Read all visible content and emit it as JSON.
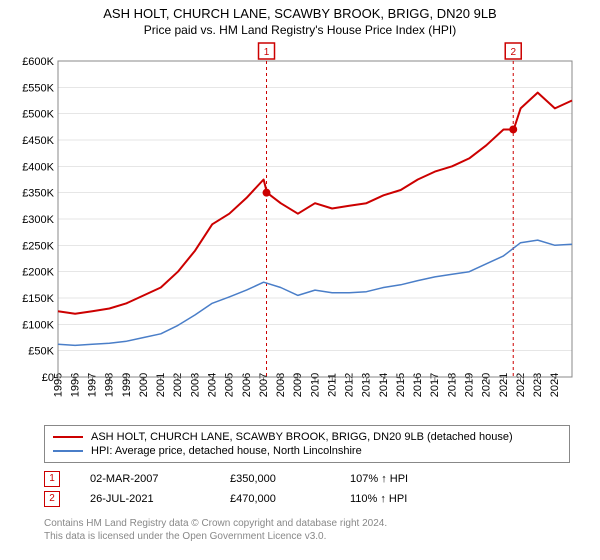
{
  "title": "ASH HOLT, CHURCH LANE, SCAWBY BROOK, BRIGG, DN20 9LB",
  "subtitle": "Price paid vs. HM Land Registry's House Price Index (HPI)",
  "chart": {
    "type": "line",
    "background_color": "#ffffff",
    "grid_color": "#cccccc",
    "border_color": "#888888",
    "label_fontsize": 11,
    "ylim": [
      0,
      600000
    ],
    "ytick_step": 50000,
    "y_ticks": [
      "£0",
      "£50K",
      "£100K",
      "£150K",
      "£200K",
      "£250K",
      "£300K",
      "£350K",
      "£400K",
      "£450K",
      "£500K",
      "£550K",
      "£600K"
    ],
    "x_ticks": [
      1995,
      1996,
      1997,
      1998,
      1999,
      2000,
      2001,
      2002,
      2003,
      2004,
      2005,
      2006,
      2007,
      2008,
      2009,
      2010,
      2011,
      2012,
      2013,
      2014,
      2015,
      2016,
      2017,
      2018,
      2019,
      2020,
      2021,
      2022,
      2023,
      2024
    ],
    "xlim": [
      1995,
      2025
    ],
    "series": [
      {
        "name": "ASH HOLT, CHURCH LANE, SCAWBY BROOK, BRIGG, DN20 9LB (detached house)",
        "color": "#cc0000",
        "line_width": 2,
        "data": [
          [
            1995,
            125000
          ],
          [
            1996,
            120000
          ],
          [
            1997,
            125000
          ],
          [
            1998,
            130000
          ],
          [
            1999,
            140000
          ],
          [
            2000,
            155000
          ],
          [
            2001,
            170000
          ],
          [
            2002,
            200000
          ],
          [
            2003,
            240000
          ],
          [
            2004,
            290000
          ],
          [
            2005,
            310000
          ],
          [
            2006,
            340000
          ],
          [
            2007,
            375000
          ],
          [
            2007.2,
            350000
          ],
          [
            2008,
            330000
          ],
          [
            2009,
            310000
          ],
          [
            2010,
            330000
          ],
          [
            2011,
            320000
          ],
          [
            2012,
            325000
          ],
          [
            2013,
            330000
          ],
          [
            2014,
            345000
          ],
          [
            2015,
            355000
          ],
          [
            2016,
            375000
          ],
          [
            2017,
            390000
          ],
          [
            2018,
            400000
          ],
          [
            2019,
            415000
          ],
          [
            2020,
            440000
          ],
          [
            2021,
            470000
          ],
          [
            2021.6,
            470000
          ],
          [
            2022,
            510000
          ],
          [
            2023,
            540000
          ],
          [
            2024,
            510000
          ],
          [
            2025,
            525000
          ]
        ]
      },
      {
        "name": "HPI: Average price, detached house, North Lincolnshire",
        "color": "#4a7ec8",
        "line_width": 1.5,
        "data": [
          [
            1995,
            62000
          ],
          [
            1996,
            60000
          ],
          [
            1997,
            62000
          ],
          [
            1998,
            64000
          ],
          [
            1999,
            68000
          ],
          [
            2000,
            75000
          ],
          [
            2001,
            82000
          ],
          [
            2002,
            98000
          ],
          [
            2003,
            118000
          ],
          [
            2004,
            140000
          ],
          [
            2005,
            152000
          ],
          [
            2006,
            165000
          ],
          [
            2007,
            180000
          ],
          [
            2008,
            170000
          ],
          [
            2009,
            155000
          ],
          [
            2010,
            165000
          ],
          [
            2011,
            160000
          ],
          [
            2012,
            160000
          ],
          [
            2013,
            162000
          ],
          [
            2014,
            170000
          ],
          [
            2015,
            175000
          ],
          [
            2016,
            183000
          ],
          [
            2017,
            190000
          ],
          [
            2018,
            195000
          ],
          [
            2019,
            200000
          ],
          [
            2020,
            215000
          ],
          [
            2021,
            230000
          ],
          [
            2022,
            255000
          ],
          [
            2023,
            260000
          ],
          [
            2024,
            250000
          ],
          [
            2025,
            252000
          ]
        ]
      }
    ],
    "markers": [
      {
        "label": "1",
        "x": 2007.17,
        "y": 350000,
        "color": "#cc0000",
        "vline": true
      },
      {
        "label": "2",
        "x": 2021.57,
        "y": 470000,
        "color": "#cc0000",
        "vline": true
      }
    ]
  },
  "legend": {
    "items": [
      {
        "label": "ASH HOLT, CHURCH LANE, SCAWBY BROOK, BRIGG, DN20 9LB (detached house)",
        "color": "#cc0000",
        "width": 2
      },
      {
        "label": "HPI: Average price, detached house, North Lincolnshire",
        "color": "#4a7ec8",
        "width": 1.5
      }
    ]
  },
  "sales": [
    {
      "marker": "1",
      "date": "02-MAR-2007",
      "price": "£350,000",
      "pct": "107% ↑ HPI"
    },
    {
      "marker": "2",
      "date": "26-JUL-2021",
      "price": "£470,000",
      "pct": "110% ↑ HPI"
    }
  ],
  "footer": {
    "line1": "Contains HM Land Registry data © Crown copyright and database right 2024.",
    "line2": "This data is licensed under the Open Government Licence v3.0."
  }
}
